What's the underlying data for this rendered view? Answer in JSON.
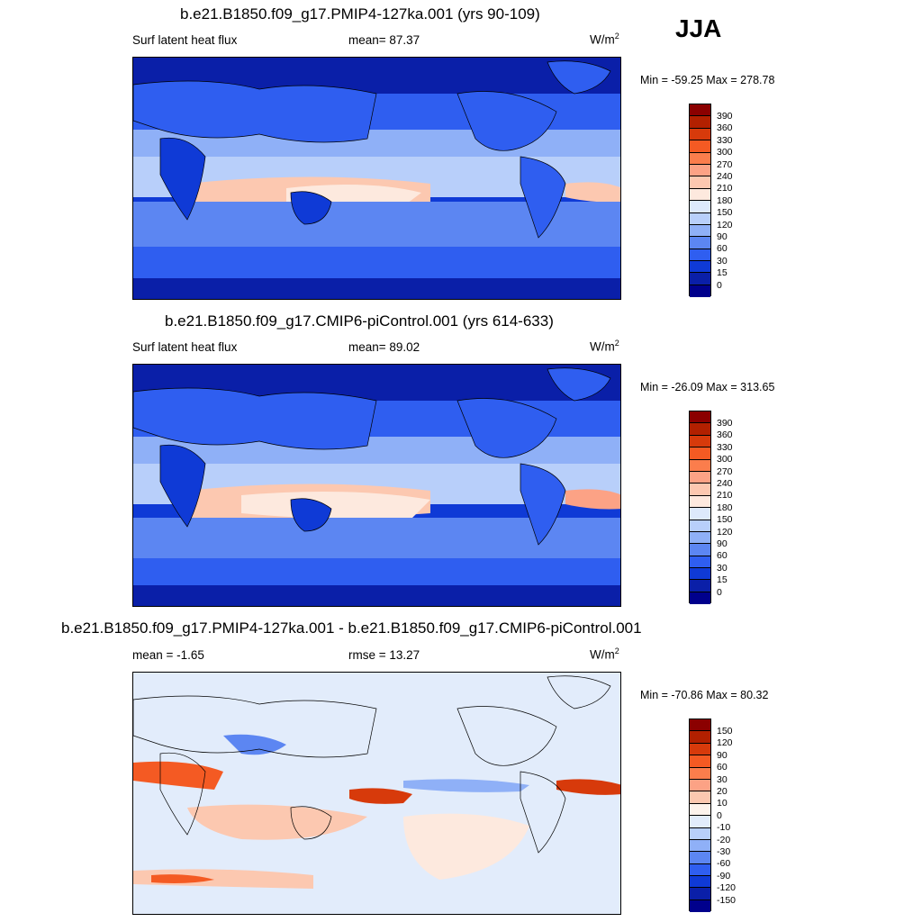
{
  "season": "JJA",
  "panels": [
    {
      "title": "b.e21.B1850.f09_g17.PMIP4-127ka.001 (yrs 90-109)",
      "left_label": "Surf latent heat flux",
      "center_label": "mean=  87.37",
      "units_base": "W/m",
      "units_exp": "2",
      "minmax": "Min = -59.25 Max = 278.78",
      "colorbar_labels": [
        "390",
        "360",
        "330",
        "300",
        "270",
        "240",
        "210",
        "180",
        "150",
        "120",
        "90",
        "60",
        "30",
        "15",
        "0"
      ],
      "colorbar_colors": [
        "#8b0000",
        "#b22000",
        "#d73a0b",
        "#f45a23",
        "#fb7d4c",
        "#fca285",
        "#fcc8b0",
        "#fde9de",
        "#dde9fb",
        "#b8cffa",
        "#8fb0f7",
        "#5c86f2",
        "#2f5ef0",
        "#0f3ad6",
        "#0a1fa8",
        "#00008c"
      ]
    },
    {
      "title": "b.e21.B1850.f09_g17.CMIP6-piControl.001 (yrs 614-633)",
      "left_label": "Surf latent heat flux",
      "center_label": "mean=  89.02",
      "units_base": "W/m",
      "units_exp": "2",
      "minmax": "Min = -26.09 Max = 313.65",
      "colorbar_labels": [
        "390",
        "360",
        "330",
        "300",
        "270",
        "240",
        "210",
        "180",
        "150",
        "120",
        "90",
        "60",
        "30",
        "15",
        "0"
      ],
      "colorbar_colors": [
        "#8b0000",
        "#b22000",
        "#d73a0b",
        "#f45a23",
        "#fb7d4c",
        "#fca285",
        "#fcc8b0",
        "#fde9de",
        "#dde9fb",
        "#b8cffa",
        "#8fb0f7",
        "#5c86f2",
        "#2f5ef0",
        "#0f3ad6",
        "#0a1fa8",
        "#00008c"
      ]
    },
    {
      "title": "b.e21.B1850.f09_g17.PMIP4-127ka.001 - b.e21.B1850.f09_g17.CMIP6-piControl.001",
      "left_label": "mean =  -1.65",
      "center_label": "rmse =  13.27",
      "units_base": "W/m",
      "units_exp": "2",
      "minmax": "Min = -70.86 Max =  80.32",
      "colorbar_labels": [
        "150",
        "120",
        "90",
        "60",
        "30",
        "20",
        "10",
        "0",
        "-10",
        "-20",
        "-30",
        "-60",
        "-90",
        "-120",
        "-150"
      ],
      "colorbar_colors": [
        "#8b0000",
        "#b22000",
        "#d73a0b",
        "#f45a23",
        "#fb7d4c",
        "#fca285",
        "#fcc8b0",
        "#fdf3ec",
        "#e2ecfb",
        "#b8cffa",
        "#8fb0f7",
        "#5c86f2",
        "#2f5ef0",
        "#0f3ad6",
        "#0a1fa8",
        "#00008c"
      ]
    }
  ]
}
